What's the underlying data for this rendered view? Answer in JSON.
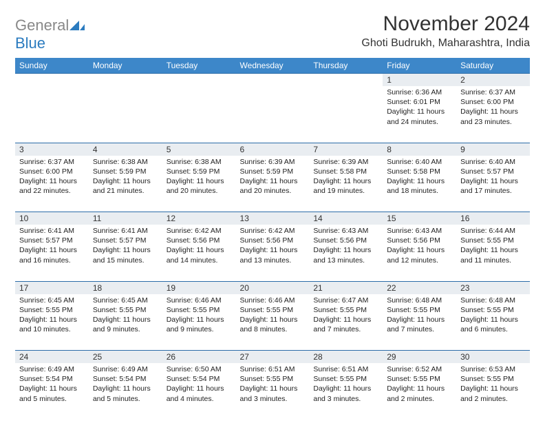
{
  "logo": {
    "general": "General",
    "blue": "Blue"
  },
  "header": {
    "month_title": "November 2024",
    "location": "Ghoti Budrukh, Maharashtra, India"
  },
  "colors": {
    "header_bg": "#3d87c9",
    "daynum_bg": "#e9edf1",
    "cell_border": "#2b6ca8",
    "text": "#222222",
    "logo_blue": "#2b7bbf"
  },
  "day_names": [
    "Sunday",
    "Monday",
    "Tuesday",
    "Wednesday",
    "Thursday",
    "Friday",
    "Saturday"
  ],
  "weeks": [
    [
      null,
      null,
      null,
      null,
      null,
      {
        "n": "1",
        "sunrise": "Sunrise: 6:36 AM",
        "sunset": "Sunset: 6:01 PM",
        "day1": "Daylight: 11 hours",
        "day2": "and 24 minutes."
      },
      {
        "n": "2",
        "sunrise": "Sunrise: 6:37 AM",
        "sunset": "Sunset: 6:00 PM",
        "day1": "Daylight: 11 hours",
        "day2": "and 23 minutes."
      }
    ],
    [
      {
        "n": "3",
        "sunrise": "Sunrise: 6:37 AM",
        "sunset": "Sunset: 6:00 PM",
        "day1": "Daylight: 11 hours",
        "day2": "and 22 minutes."
      },
      {
        "n": "4",
        "sunrise": "Sunrise: 6:38 AM",
        "sunset": "Sunset: 5:59 PM",
        "day1": "Daylight: 11 hours",
        "day2": "and 21 minutes."
      },
      {
        "n": "5",
        "sunrise": "Sunrise: 6:38 AM",
        "sunset": "Sunset: 5:59 PM",
        "day1": "Daylight: 11 hours",
        "day2": "and 20 minutes."
      },
      {
        "n": "6",
        "sunrise": "Sunrise: 6:39 AM",
        "sunset": "Sunset: 5:59 PM",
        "day1": "Daylight: 11 hours",
        "day2": "and 20 minutes."
      },
      {
        "n": "7",
        "sunrise": "Sunrise: 6:39 AM",
        "sunset": "Sunset: 5:58 PM",
        "day1": "Daylight: 11 hours",
        "day2": "and 19 minutes."
      },
      {
        "n": "8",
        "sunrise": "Sunrise: 6:40 AM",
        "sunset": "Sunset: 5:58 PM",
        "day1": "Daylight: 11 hours",
        "day2": "and 18 minutes."
      },
      {
        "n": "9",
        "sunrise": "Sunrise: 6:40 AM",
        "sunset": "Sunset: 5:57 PM",
        "day1": "Daylight: 11 hours",
        "day2": "and 17 minutes."
      }
    ],
    [
      {
        "n": "10",
        "sunrise": "Sunrise: 6:41 AM",
        "sunset": "Sunset: 5:57 PM",
        "day1": "Daylight: 11 hours",
        "day2": "and 16 minutes."
      },
      {
        "n": "11",
        "sunrise": "Sunrise: 6:41 AM",
        "sunset": "Sunset: 5:57 PM",
        "day1": "Daylight: 11 hours",
        "day2": "and 15 minutes."
      },
      {
        "n": "12",
        "sunrise": "Sunrise: 6:42 AM",
        "sunset": "Sunset: 5:56 PM",
        "day1": "Daylight: 11 hours",
        "day2": "and 14 minutes."
      },
      {
        "n": "13",
        "sunrise": "Sunrise: 6:42 AM",
        "sunset": "Sunset: 5:56 PM",
        "day1": "Daylight: 11 hours",
        "day2": "and 13 minutes."
      },
      {
        "n": "14",
        "sunrise": "Sunrise: 6:43 AM",
        "sunset": "Sunset: 5:56 PM",
        "day1": "Daylight: 11 hours",
        "day2": "and 13 minutes."
      },
      {
        "n": "15",
        "sunrise": "Sunrise: 6:43 AM",
        "sunset": "Sunset: 5:56 PM",
        "day1": "Daylight: 11 hours",
        "day2": "and 12 minutes."
      },
      {
        "n": "16",
        "sunrise": "Sunrise: 6:44 AM",
        "sunset": "Sunset: 5:55 PM",
        "day1": "Daylight: 11 hours",
        "day2": "and 11 minutes."
      }
    ],
    [
      {
        "n": "17",
        "sunrise": "Sunrise: 6:45 AM",
        "sunset": "Sunset: 5:55 PM",
        "day1": "Daylight: 11 hours",
        "day2": "and 10 minutes."
      },
      {
        "n": "18",
        "sunrise": "Sunrise: 6:45 AM",
        "sunset": "Sunset: 5:55 PM",
        "day1": "Daylight: 11 hours",
        "day2": "and 9 minutes."
      },
      {
        "n": "19",
        "sunrise": "Sunrise: 6:46 AM",
        "sunset": "Sunset: 5:55 PM",
        "day1": "Daylight: 11 hours",
        "day2": "and 9 minutes."
      },
      {
        "n": "20",
        "sunrise": "Sunrise: 6:46 AM",
        "sunset": "Sunset: 5:55 PM",
        "day1": "Daylight: 11 hours",
        "day2": "and 8 minutes."
      },
      {
        "n": "21",
        "sunrise": "Sunrise: 6:47 AM",
        "sunset": "Sunset: 5:55 PM",
        "day1": "Daylight: 11 hours",
        "day2": "and 7 minutes."
      },
      {
        "n": "22",
        "sunrise": "Sunrise: 6:48 AM",
        "sunset": "Sunset: 5:55 PM",
        "day1": "Daylight: 11 hours",
        "day2": "and 7 minutes."
      },
      {
        "n": "23",
        "sunrise": "Sunrise: 6:48 AM",
        "sunset": "Sunset: 5:55 PM",
        "day1": "Daylight: 11 hours",
        "day2": "and 6 minutes."
      }
    ],
    [
      {
        "n": "24",
        "sunrise": "Sunrise: 6:49 AM",
        "sunset": "Sunset: 5:54 PM",
        "day1": "Daylight: 11 hours",
        "day2": "and 5 minutes."
      },
      {
        "n": "25",
        "sunrise": "Sunrise: 6:49 AM",
        "sunset": "Sunset: 5:54 PM",
        "day1": "Daylight: 11 hours",
        "day2": "and 5 minutes."
      },
      {
        "n": "26",
        "sunrise": "Sunrise: 6:50 AM",
        "sunset": "Sunset: 5:54 PM",
        "day1": "Daylight: 11 hours",
        "day2": "and 4 minutes."
      },
      {
        "n": "27",
        "sunrise": "Sunrise: 6:51 AM",
        "sunset": "Sunset: 5:55 PM",
        "day1": "Daylight: 11 hours",
        "day2": "and 3 minutes."
      },
      {
        "n": "28",
        "sunrise": "Sunrise: 6:51 AM",
        "sunset": "Sunset: 5:55 PM",
        "day1": "Daylight: 11 hours",
        "day2": "and 3 minutes."
      },
      {
        "n": "29",
        "sunrise": "Sunrise: 6:52 AM",
        "sunset": "Sunset: 5:55 PM",
        "day1": "Daylight: 11 hours",
        "day2": "and 2 minutes."
      },
      {
        "n": "30",
        "sunrise": "Sunrise: 6:53 AM",
        "sunset": "Sunset: 5:55 PM",
        "day1": "Daylight: 11 hours",
        "day2": "and 2 minutes."
      }
    ]
  ]
}
